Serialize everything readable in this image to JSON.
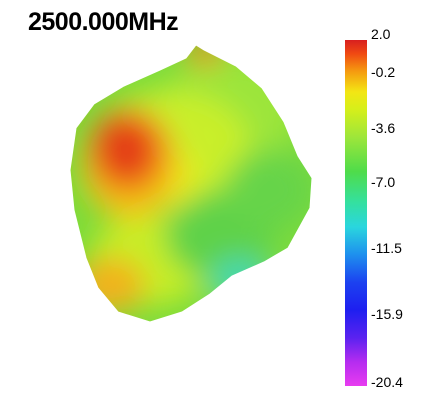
{
  "title": "2500.000MHz",
  "colorbar": {
    "labels": [
      "2.0",
      "-0.2",
      "-3.6",
      "-7.0",
      "-11.5",
      "-15.9",
      "-20.4"
    ]
  }
}
